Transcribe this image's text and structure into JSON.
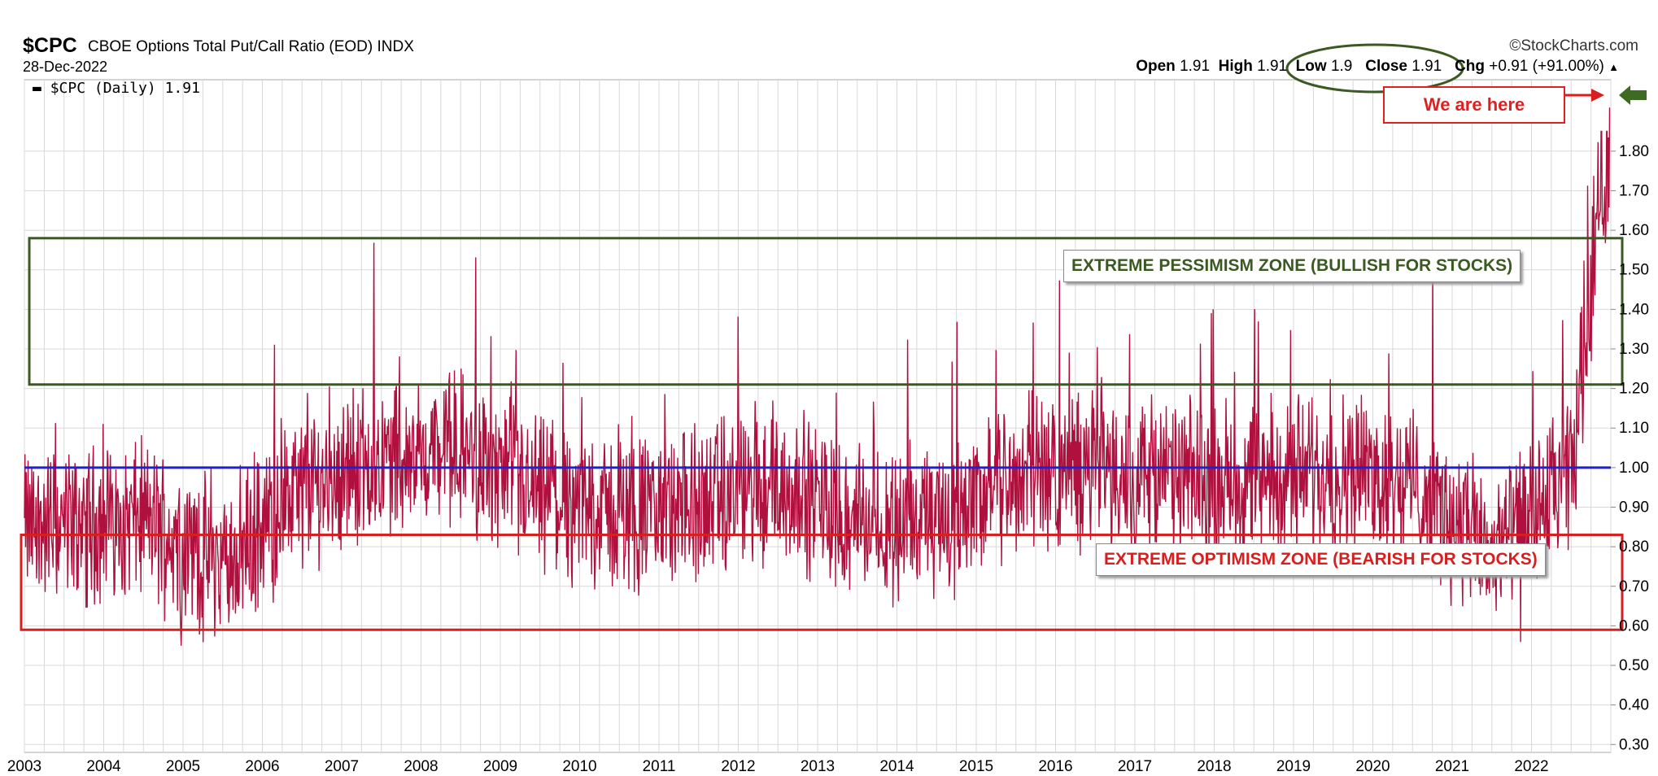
{
  "header": {
    "symbol": "$CPC",
    "description": "CBOE Options Total Put/Call Ratio (EOD)",
    "exchange": "INDX",
    "date": "28-Dec-2022",
    "brand": "©StockCharts.com",
    "open_label": "Open",
    "open": "1.91",
    "high_label": "High",
    "high": "1.91",
    "low_label": "Low",
    "low": "1.9",
    "close_label": "Close",
    "close": "1.91",
    "chg_label": "Chg",
    "chg": "+0.91 (+91.00%)"
  },
  "legend": {
    "text": "$CPC (Daily) 1.91"
  },
  "annotations": {
    "pessimism_zone": "EXTREME PESSIMISM ZONE (BULLISH FOR STOCKS)",
    "optimism_zone": "EXTREME OPTIMISM ZONE (BEARISH FOR STOCKS)",
    "we_are_here": "We are here"
  },
  "colors": {
    "series": "#b0103d",
    "mean_line": "#1f1fd6",
    "pessimism_zone": "#3b5a22",
    "optimism_zone": "#d81e1e",
    "close_ellipse": "#3b5a22",
    "arrow_marker": "#3e6a22",
    "grid": "#d8d8d8"
  },
  "chart_data": {
    "type": "line",
    "title": "$CPC CBOE Options Total Put/Call Ratio (EOD)",
    "series": [
      {
        "name": "$CPC (Daily)",
        "x": [
          "2003",
          "2004",
          "2005",
          "2006",
          "2007",
          "2008",
          "2009",
          "2010",
          "2011",
          "2012",
          "2013",
          "2014",
          "2015",
          "2016",
          "2017",
          "2018",
          "2019",
          "2020",
          "2021",
          "2022",
          "2022-12-28"
        ],
        "values": [
          0.85,
          0.87,
          0.75,
          0.95,
          1.02,
          1.05,
          0.92,
          0.88,
          0.9,
          0.96,
          0.87,
          0.86,
          0.98,
          1.0,
          0.97,
          0.97,
          1.0,
          0.96,
          0.78,
          0.97,
          1.91
        ]
      }
    ],
    "x_tick_labels": [
      "2003",
      "2004",
      "2005",
      "2006",
      "2007",
      "2008",
      "2009",
      "2010",
      "2011",
      "2012",
      "2013",
      "2014",
      "2015",
      "2016",
      "2017",
      "2018",
      "2019",
      "2020",
      "2021",
      "2022"
    ],
    "y_tick_labels": [
      "0.30",
      "0.40",
      "0.50",
      "0.60",
      "0.70",
      "0.80",
      "0.90",
      "1.00",
      "1.10",
      "1.20",
      "1.30",
      "1.40",
      "1.50",
      "1.60",
      "1.70",
      "1.80"
    ],
    "ylim": [
      0.28,
      1.96
    ],
    "xlim": [
      2003.0,
      2023.0
    ],
    "y_position": "right",
    "grid": true,
    "reference_lines": [
      {
        "y": 1.0
      }
    ],
    "zones": [
      {
        "name": "pessimism",
        "y_low": 1.21,
        "y_high": 1.58
      },
      {
        "name": "optimism",
        "y_low": 0.59,
        "y_high": 0.83
      }
    ]
  }
}
